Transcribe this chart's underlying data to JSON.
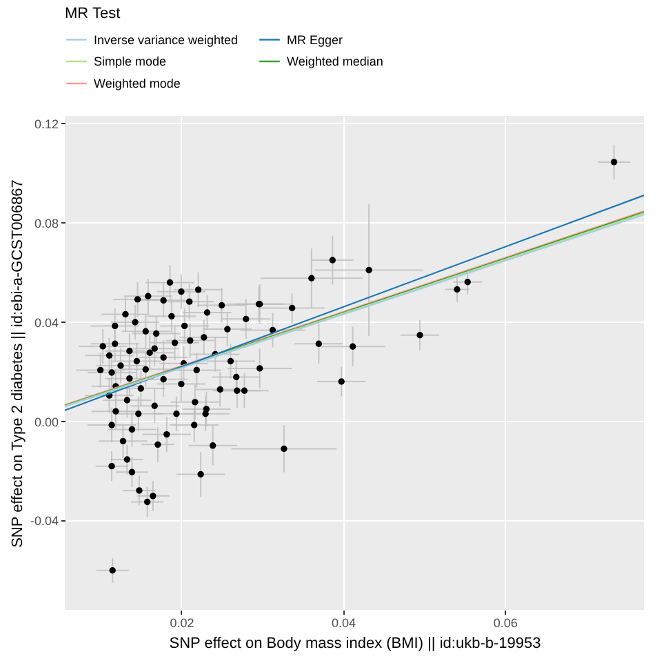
{
  "chart_data": {
    "type": "scatter",
    "xlabel": "SNP effect on Body mass index (BMI) || id:ukb-b-19953",
    "ylabel": "SNP effect on Type 2 diabetes || id:ebi-a-GCST006867",
    "legend_title": "MR Test",
    "legend": "top",
    "grid": true,
    "xlim": [
      0.0056,
      0.0772
    ],
    "ylim": [
      -0.076,
      0.123
    ],
    "xticks": [
      0.02,
      0.04,
      0.06
    ],
    "yticks": [
      -0.04,
      {
        "value": 0,
        "label": "0.00"
      },
      0.04,
      0.08,
      0.12
    ],
    "series": [
      {
        "color": "#000000",
        "marker": "circle",
        "x": [
          0.0735,
          0.0387,
          0.0361,
          0.0432,
          0.0337,
          0.0541,
          0.0554,
          0.0495,
          0.037,
          0.0412,
          0.0398,
          0.0297,
          0.0313,
          0.0297,
          0.028,
          0.0327,
          0.0224,
          0.0239,
          0.0115,
          0.0158,
          0.0165,
          0.0148,
          0.0139,
          0.0114,
          0.0171,
          0.0133,
          0.0216,
          0.023,
          0.0278,
          0.0268,
          0.0248,
          0.0182,
          0.0186,
          0.0221,
          0.02,
          0.0159,
          0.0146,
          0.0178,
          0.021,
          0.025,
          0.0296,
          0.0131,
          0.0232,
          0.0143,
          0.0188,
          0.0118,
          0.0156,
          0.0204,
          0.0257,
          0.0169,
          0.0228,
          0.0118,
          0.0192,
          0.0211,
          0.0136,
          0.0161,
          0.0111,
          0.0242,
          0.0178,
          0.0145,
          0.0125,
          0.0203,
          0.0261,
          0.0156,
          0.0114,
          0.0219,
          0.0136,
          0.0178,
          0.0119,
          0.015,
          0.02,
          0.0269,
          0.0111,
          0.0133,
          0.0167,
          0.0217,
          0.0119,
          0.0147,
          0.0194,
          0.0114,
          0.0139,
          0.0128,
          0.0231,
          0.01,
          0.0103,
          0.0167
        ],
        "values": [
          0.1044,
          0.0649,
          0.0576,
          0.0609,
          0.0456,
          0.0531,
          0.0561,
          0.0347,
          0.0312,
          0.0301,
          0.016,
          0.0472,
          0.0367,
          0.0213,
          0.0412,
          -0.0111,
          -0.0214,
          -0.0098,
          -0.0601,
          -0.0325,
          -0.0301,
          -0.0279,
          -0.0205,
          -0.0181,
          -0.0094,
          -0.0154,
          -0.0015,
          0.003,
          0.0123,
          0.0178,
          0.0128,
          -0.0053,
          0.0559,
          0.053,
          0.0522,
          0.0504,
          0.0491,
          0.0487,
          0.0482,
          0.0467,
          0.0472,
          0.0431,
          0.0438,
          0.0399,
          0.0423,
          0.0384,
          0.0362,
          0.0384,
          0.0371,
          0.0353,
          0.0338,
          0.0312,
          0.0316,
          0.0325,
          0.0283,
          0.0276,
          0.0265,
          0.027,
          0.0257,
          0.0242,
          0.0224,
          0.0233,
          0.0242,
          0.0209,
          0.0196,
          0.0206,
          0.0172,
          0.0169,
          0.0141,
          0.0132,
          0.015,
          0.0123,
          0.0104,
          0.0085,
          0.0062,
          0.0077,
          0.004,
          0.003,
          0.003,
          -0.0015,
          -0.0033,
          -0.008,
          0.0049,
          0.0206,
          0.0302,
          0.0293
        ],
        "errors": [
          0.007,
          0.0098,
          0.012,
          0.0265,
          0.006,
          0.005,
          0.005,
          0.006,
          0.008,
          0.008,
          0.006,
          0.008,
          0.007,
          0.008,
          0.008,
          0.0095,
          0.009,
          0.008,
          0.005,
          0.006,
          0.006,
          0.006,
          0.006,
          0.006,
          0.007,
          0.006,
          0.007,
          0.007,
          0.007,
          0.007,
          0.007,
          0.007,
          0.007,
          0.007,
          0.007,
          0.007,
          0.007,
          0.007,
          0.007,
          0.007,
          0.007,
          0.007,
          0.007,
          0.007,
          0.007,
          0.007,
          0.007,
          0.007,
          0.007,
          0.007,
          0.007,
          0.007,
          0.007,
          0.007,
          0.007,
          0.007,
          0.007,
          0.007,
          0.007,
          0.007,
          0.007,
          0.007,
          0.007,
          0.007,
          0.007,
          0.007,
          0.007,
          0.007,
          0.007,
          0.007,
          0.007,
          0.007,
          0.007,
          0.007,
          0.007,
          0.007,
          0.007,
          0.007,
          0.007,
          0.007,
          0.007,
          0.007,
          0.007,
          0.007,
          0.007,
          0.007
        ],
        "xerrors": [
          0.002,
          0.0026,
          0.0063,
          0.0067,
          0.004,
          0.0015,
          0.0018,
          0.0024,
          0.003,
          0.004,
          0.003,
          0.004,
          0.004,
          0.004,
          0.003,
          0.0065,
          0.003,
          0.003,
          0.002,
          0.002,
          0.002,
          0.002,
          0.002,
          0.002,
          0.002,
          0.002,
          0.003,
          0.003,
          0.003,
          0.003,
          0.003,
          0.003,
          0.003,
          0.003,
          0.003,
          0.003,
          0.003,
          0.003,
          0.003,
          0.003,
          0.003,
          0.003,
          0.003,
          0.003,
          0.003,
          0.003,
          0.003,
          0.003,
          0.003,
          0.003,
          0.003,
          0.003,
          0.003,
          0.003,
          0.003,
          0.003,
          0.003,
          0.003,
          0.003,
          0.003,
          0.003,
          0.003,
          0.003,
          0.003,
          0.003,
          0.003,
          0.003,
          0.003,
          0.003,
          0.003,
          0.003,
          0.003,
          0.003,
          0.003,
          0.003,
          0.003,
          0.003,
          0.003,
          0.003,
          0.003,
          0.003,
          0.003,
          0.003,
          0.003,
          0.003,
          0.003
        ]
      },
      {
        "type": "line",
        "name": "Inverse variance weighted",
        "color": "#a6cee3",
        "x": [
          0.0056,
          0.0772
        ],
        "values": [
          0.0059,
          0.0832
        ]
      },
      {
        "type": "line",
        "name": "MR Egger",
        "color": "#1f78b4",
        "x": [
          0.0056,
          0.0772
        ],
        "values": [
          0.0044,
          0.091
        ]
      },
      {
        "type": "line",
        "name": "Simple mode",
        "color": "#b2df8a",
        "x": [
          0.0056,
          0.0772
        ],
        "values": [
          0.0061,
          0.0838
        ]
      },
      {
        "type": "line",
        "name": "Weighted median",
        "color": "#33a02c",
        "x": [
          0.0056,
          0.0772
        ],
        "values": [
          0.0063,
          0.0842
        ]
      },
      {
        "type": "line",
        "name": "Weighted mode",
        "color": "#fb9a99",
        "x": [
          0.0056,
          0.0772
        ],
        "values": [
          0.0066,
          0.0846
        ]
      }
    ]
  }
}
